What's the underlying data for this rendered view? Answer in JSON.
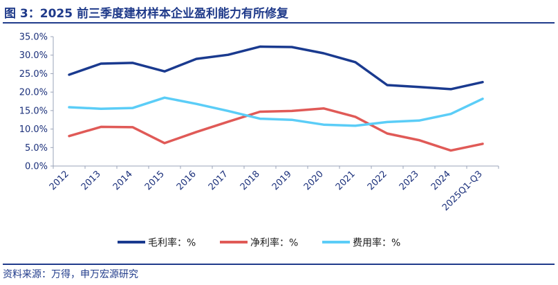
{
  "figure": {
    "title": "图 3：2025 前三季度建材样本企业盈利能力有所修复",
    "source": "资料来源：万得，申万宏源研究"
  },
  "chart_data": {
    "type": "line",
    "categories": [
      "2012",
      "2013",
      "2014",
      "2015",
      "2016",
      "2017",
      "2018",
      "2019",
      "2020",
      "2021",
      "2022",
      "2023",
      "2024",
      "2025Q1-Q3"
    ],
    "ylim": [
      0,
      35
    ],
    "yticks": [
      "0.0%",
      "5.0%",
      "10.0%",
      "15.0%",
      "20.0%",
      "25.0%",
      "30.0%",
      "35.0%"
    ],
    "grid": false,
    "legend_position": "bottom",
    "series": [
      {
        "name": "毛利率：%",
        "color": "#1a3a8f",
        "values": [
          24.7,
          27.7,
          27.9,
          25.6,
          29.0,
          30.1,
          32.3,
          32.2,
          30.5,
          28.1,
          21.9,
          21.4,
          20.8,
          22.7
        ]
      },
      {
        "name": "净利率：%",
        "color": "#e05a57",
        "values": [
          8.1,
          10.6,
          10.5,
          6.2,
          9.2,
          12.0,
          14.7,
          14.9,
          15.6,
          13.3,
          8.8,
          7.0,
          4.2,
          6.0
        ]
      },
      {
        "name": "费用率：%",
        "color": "#5bcdf7",
        "values": [
          15.9,
          15.5,
          15.7,
          18.5,
          16.8,
          14.9,
          12.8,
          12.5,
          11.2,
          10.9,
          11.9,
          12.3,
          14.1,
          18.2
        ]
      }
    ]
  }
}
